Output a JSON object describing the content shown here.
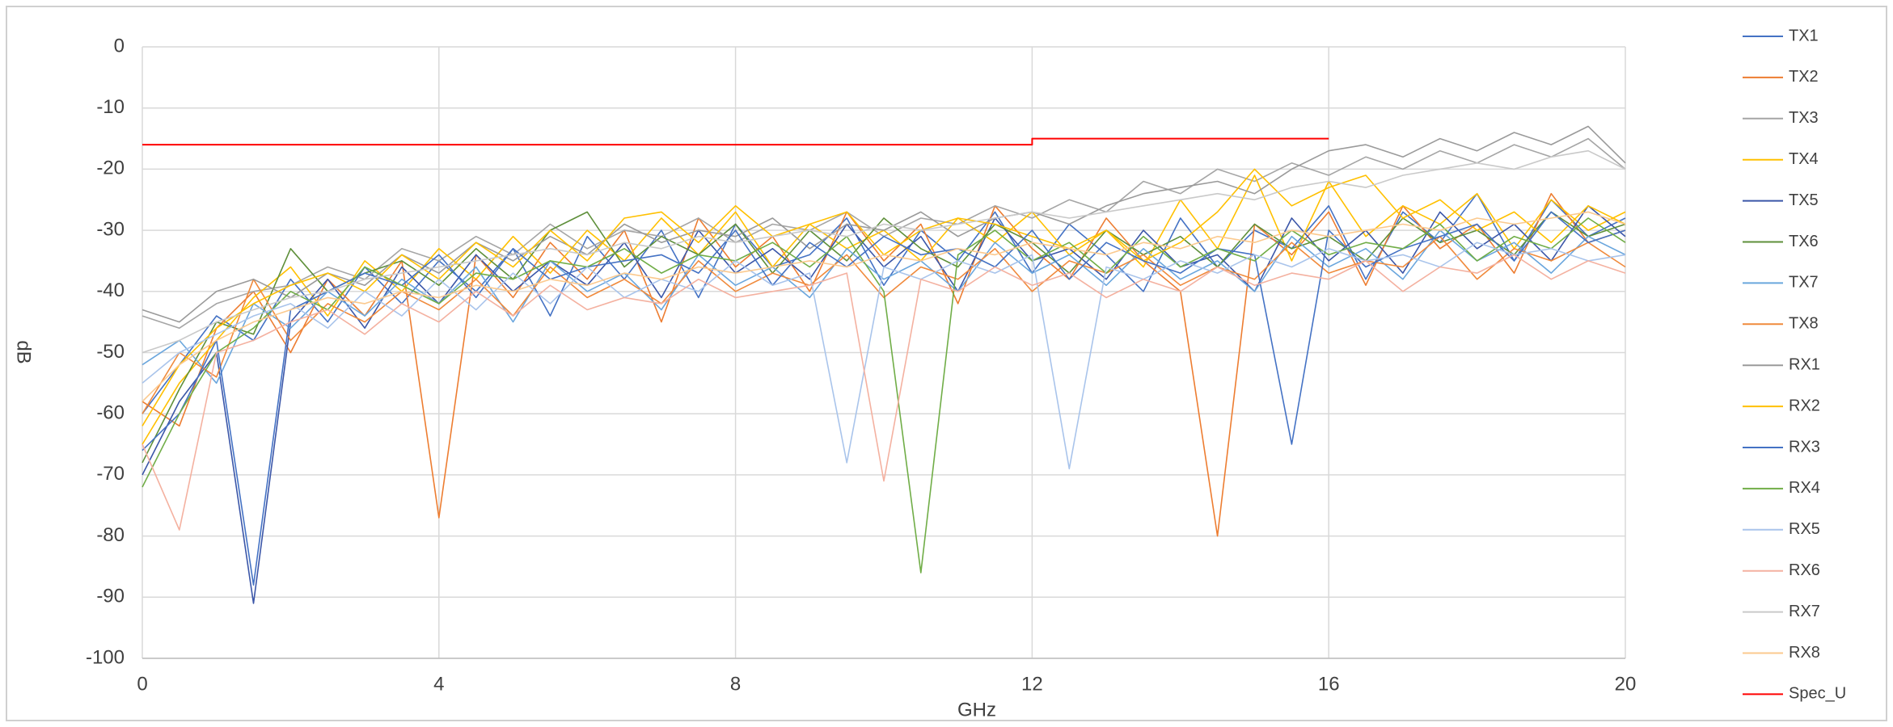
{
  "chart_data": {
    "type": "line",
    "xlabel": "GHz",
    "ylabel": "dB",
    "xlim": [
      0,
      20
    ],
    "xticks": [
      0,
      4,
      8,
      12,
      16,
      20
    ],
    "ylim": [
      -100,
      0
    ],
    "yticks": [
      0,
      -10,
      -20,
      -30,
      -40,
      -50,
      -60,
      -70,
      -80,
      -90,
      -100
    ],
    "grid": true,
    "legend": "right",
    "x": [
      0,
      0.5,
      1,
      1.5,
      2,
      2.5,
      3,
      3.5,
      4,
      4.5,
      5,
      5.5,
      6,
      6.5,
      7,
      7.5,
      8,
      8.5,
      9,
      9.5,
      10,
      10.5,
      11,
      11.5,
      12,
      12.5,
      13,
      13.5,
      14,
      14.5,
      15,
      15.5,
      16,
      16.5,
      17,
      17.5,
      18,
      18.5,
      19,
      19.5,
      20
    ],
    "series": [
      {
        "name": "TX1",
        "color": "#4472c4",
        "values": [
          -60,
          -52,
          -44,
          -48,
          -38,
          -45,
          -36,
          -42,
          -35,
          -40,
          -33,
          -44,
          -31,
          -38,
          -30,
          -41,
          -29,
          -36,
          -34,
          -28,
          -39,
          -30,
          -35,
          -27,
          -37,
          -29,
          -34,
          -40,
          -28,
          -36,
          -30,
          -33,
          -26,
          -38,
          -27,
          -32,
          -24,
          -35,
          -25,
          -31,
          -28
        ]
      },
      {
        "name": "TX2",
        "color": "#ed7d31",
        "values": [
          -58,
          -62,
          -46,
          -40,
          -50,
          -38,
          -44,
          -35,
          -77,
          -34,
          -41,
          -32,
          -38,
          -30,
          -45,
          -28,
          -36,
          -31,
          -40,
          -27,
          -35,
          -29,
          -42,
          -26,
          -33,
          -38,
          -28,
          -35,
          -40,
          -80,
          -29,
          -34,
          -27,
          -39,
          -26,
          -33,
          -29,
          -37,
          -24,
          -32,
          -30
        ]
      },
      {
        "name": "TX3",
        "color": "#a5a5a5",
        "values": [
          -44,
          -46,
          -42,
          -40,
          -39,
          -36,
          -38,
          -33,
          -35,
          -31,
          -34,
          -29,
          -33,
          -30,
          -31,
          -28,
          -32,
          -29,
          -30,
          -27,
          -31,
          -28,
          -29,
          -26,
          -28,
          -25,
          -27,
          -22,
          -24,
          -20,
          -22,
          -19,
          -21,
          -18,
          -20,
          -17,
          -19,
          -16,
          -18,
          -15,
          -20
        ]
      },
      {
        "name": "TX4",
        "color": "#ffc000",
        "values": [
          -65,
          -55,
          -48,
          -41,
          -36,
          -44,
          -35,
          -40,
          -33,
          -38,
          -31,
          -37,
          -30,
          -35,
          -28,
          -34,
          -27,
          -36,
          -29,
          -33,
          -30,
          -35,
          -28,
          -32,
          -27,
          -34,
          -30,
          -36,
          -25,
          -33,
          -21,
          -35,
          -22,
          -31,
          -26,
          -29,
          -24,
          -33,
          -25,
          -30,
          -27
        ]
      },
      {
        "name": "TX5",
        "color": "#3b56a8",
        "values": [
          -70,
          -58,
          -50,
          -91,
          -45,
          -38,
          -46,
          -36,
          -42,
          -34,
          -40,
          -35,
          -39,
          -32,
          -41,
          -30,
          -37,
          -33,
          -38,
          -29,
          -36,
          -31,
          -40,
          -28,
          -35,
          -33,
          -38,
          -30,
          -36,
          -34,
          -40,
          -28,
          -35,
          -30,
          -37,
          -27,
          -33,
          -29,
          -35,
          -26,
          -31
        ]
      },
      {
        "name": "TX6",
        "color": "#5e8f3a",
        "values": [
          -68,
          -56,
          -45,
          -47,
          -33,
          -40,
          -37,
          -35,
          -39,
          -33,
          -38,
          -30,
          -27,
          -36,
          -31,
          -34,
          -29,
          -37,
          -30,
          -35,
          -28,
          -33,
          -36,
          -29,
          -32,
          -37,
          -30,
          -34,
          -31,
          -36,
          -29,
          -33,
          -31,
          -35,
          -28,
          -32,
          -30,
          -34,
          -27,
          -31,
          -29
        ]
      },
      {
        "name": "TX7",
        "color": "#6aa6dd",
        "values": [
          -52,
          -48,
          -55,
          -42,
          -46,
          -40,
          -44,
          -38,
          -42,
          -36,
          -45,
          -35,
          -40,
          -37,
          -43,
          -34,
          -39,
          -36,
          -41,
          -33,
          -38,
          -35,
          -40,
          -32,
          -37,
          -34,
          -39,
          -33,
          -38,
          -35,
          -40,
          -31,
          -36,
          -33,
          -38,
          -30,
          -35,
          -32,
          -37,
          -31,
          -34
        ]
      },
      {
        "name": "TX8",
        "color": "#f08a3c",
        "values": [
          -60,
          -50,
          -54,
          -38,
          -48,
          -42,
          -45,
          -40,
          -43,
          -38,
          -44,
          -36,
          -41,
          -38,
          -42,
          -35,
          -40,
          -37,
          -39,
          -34,
          -41,
          -36,
          -38,
          -33,
          -40,
          -35,
          -37,
          -34,
          -39,
          -36,
          -38,
          -32,
          -37,
          -35,
          -36,
          -31,
          -38,
          -33,
          -35,
          -32,
          -36
        ]
      },
      {
        "name": "RX1",
        "color": "#9a9a9a",
        "values": [
          -43,
          -45,
          -40,
          -38,
          -41,
          -37,
          -39,
          -34,
          -37,
          -32,
          -35,
          -31,
          -34,
          -29,
          -32,
          -30,
          -31,
          -28,
          -33,
          -29,
          -30,
          -27,
          -31,
          -28,
          -27,
          -29,
          -26,
          -24,
          -23,
          -22,
          -24,
          -20,
          -17,
          -16,
          -18,
          -15,
          -17,
          -14,
          -16,
          -13,
          -19
        ]
      },
      {
        "name": "RX2",
        "color": "#ffc000",
        "values": [
          -62,
          -52,
          -46,
          -42,
          -39,
          -37,
          -40,
          -34,
          -38,
          -32,
          -36,
          -30,
          -35,
          -28,
          -27,
          -32,
          -26,
          -31,
          -29,
          -27,
          -34,
          -30,
          -28,
          -29,
          -31,
          -33,
          -30,
          -35,
          -32,
          -27,
          -20,
          -26,
          -23,
          -21,
          -28,
          -25,
          -30,
          -27,
          -32,
          -26,
          -29
        ]
      },
      {
        "name": "RX3",
        "color": "#4472c4",
        "values": [
          -66,
          -60,
          -48,
          -88,
          -43,
          -40,
          -37,
          -39,
          -34,
          -41,
          -33,
          -38,
          -36,
          -35,
          -34,
          -37,
          -30,
          -39,
          -32,
          -36,
          -31,
          -34,
          -33,
          -36,
          -30,
          -38,
          -32,
          -35,
          -37,
          -33,
          -34,
          -65,
          -30,
          -36,
          -33,
          -31,
          -29,
          -35,
          -27,
          -32,
          -30
        ]
      },
      {
        "name": "RX4",
        "color": "#70ad47",
        "values": [
          -72,
          -60,
          -50,
          -46,
          -40,
          -43,
          -36,
          -39,
          -42,
          -37,
          -38,
          -35,
          -36,
          -33,
          -37,
          -34,
          -35,
          -32,
          -36,
          -31,
          -40,
          -86,
          -34,
          -30,
          -35,
          -32,
          -37,
          -31,
          -36,
          -33,
          -35,
          -30,
          -34,
          -32,
          -33,
          -29,
          -35,
          -31,
          -33,
          -28,
          -32
        ]
      },
      {
        "name": "RX5",
        "color": "#a9c4eb",
        "values": [
          -55,
          -50,
          -47,
          -44,
          -42,
          -46,
          -40,
          -44,
          -38,
          -43,
          -37,
          -42,
          -36,
          -41,
          -38,
          -40,
          -35,
          -39,
          -37,
          -68,
          -36,
          -38,
          -35,
          -37,
          -34,
          -69,
          -36,
          -38,
          -35,
          -37,
          -34,
          -36,
          -33,
          -35,
          -34,
          -36,
          -32,
          -34,
          -33,
          -35,
          -34
        ]
      },
      {
        "name": "RX6",
        "color": "#f4b1a0",
        "values": [
          -65,
          -79,
          -50,
          -48,
          -45,
          -43,
          -47,
          -42,
          -45,
          -40,
          -44,
          -39,
          -43,
          -41,
          -42,
          -38,
          -41,
          -40,
          -39,
          -37,
          -71,
          -38,
          -40,
          -36,
          -39,
          -37,
          -41,
          -38,
          -40,
          -36,
          -39,
          -37,
          -38,
          -35,
          -40,
          -36,
          -37,
          -34,
          -38,
          -35,
          -37
        ]
      },
      {
        "name": "RX7",
        "color": "#c9c9c9",
        "values": [
          -50,
          -48,
          -45,
          -43,
          -41,
          -40,
          -38,
          -37,
          -36,
          -35,
          -34,
          -33,
          -34,
          -32,
          -33,
          -31,
          -32,
          -31,
          -30,
          -31,
          -29,
          -30,
          -29,
          -28,
          -27,
          -28,
          -27,
          -26,
          -25,
          -24,
          -25,
          -23,
          -22,
          -23,
          -21,
          -20,
          -19,
          -20,
          -18,
          -17,
          -20
        ]
      },
      {
        "name": "RX8",
        "color": "#fbc98e",
        "values": [
          -58,
          -52,
          -48,
          -45,
          -43,
          -41,
          -42,
          -40,
          -41,
          -39,
          -40,
          -38,
          -39,
          -37,
          -38,
          -36,
          -37,
          -36,
          -35,
          -36,
          -34,
          -35,
          -33,
          -34,
          -32,
          -33,
          -34,
          -32,
          -33,
          -31,
          -32,
          -30,
          -31,
          -30,
          -29,
          -30,
          -28,
          -29,
          -28,
          -27,
          -29
        ]
      },
      {
        "name": "Spec_U",
        "color": "#ff0000",
        "x": [
          0,
          12,
          12,
          16
        ],
        "values": [
          -16,
          -16,
          -15,
          -15
        ]
      }
    ]
  }
}
